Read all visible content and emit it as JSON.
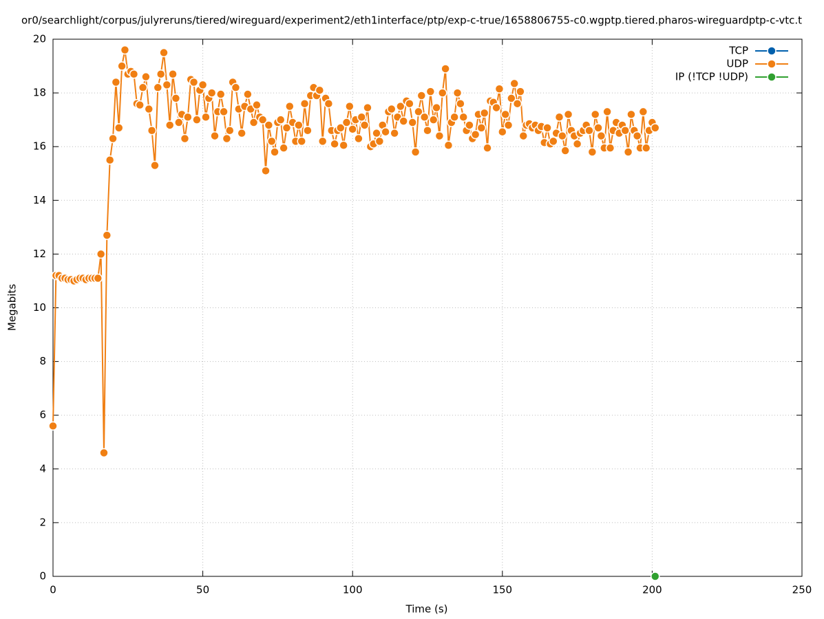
{
  "chart_data": {
    "type": "line",
    "title": "or0/searchlight/corpus/julyreruns/tiered/wireguard/experiment2/eth1interface/ptp/exp-c-true/1658806755-c0.wgptp.tiered.pharos-wireguardptp-c-vtc.t",
    "x_label": "Time (s)",
    "y_label": "Megabits",
    "x": [
      0,
      1,
      2,
      3,
      4,
      5,
      6,
      7,
      8,
      9,
      10,
      11,
      12,
      13,
      14,
      15,
      16,
      17,
      18,
      19,
      20,
      21,
      22,
      23,
      24,
      25,
      26,
      27,
      28,
      29,
      30,
      31,
      32,
      33,
      34,
      35,
      36,
      37,
      38,
      39,
      40,
      41,
      42,
      43,
      44,
      45,
      46,
      47,
      48,
      49,
      50,
      51,
      52,
      53,
      54,
      55,
      56,
      57,
      58,
      59,
      60,
      61,
      62,
      63,
      64,
      65,
      66,
      67,
      68,
      69,
      70,
      71,
      72,
      73,
      74,
      75,
      76,
      77,
      78,
      79,
      80,
      81,
      82,
      83,
      84,
      85,
      86,
      87,
      88,
      89,
      90,
      91,
      92,
      93,
      94,
      95,
      96,
      97,
      98,
      99,
      100,
      101,
      102,
      103,
      104,
      105,
      106,
      107,
      108,
      109,
      110,
      111,
      112,
      113,
      114,
      115,
      116,
      117,
      118,
      119,
      120,
      121,
      122,
      123,
      124,
      125,
      126,
      127,
      128,
      129,
      130,
      131,
      132,
      133,
      134,
      135,
      136,
      137,
      138,
      139,
      140,
      141,
      142,
      143,
      144,
      145,
      146,
      147,
      148,
      149,
      150,
      151,
      152,
      153,
      154,
      155,
      156,
      157,
      158,
      159,
      160,
      161,
      162,
      163,
      164,
      165,
      166,
      167,
      168,
      169,
      170,
      171,
      172,
      173,
      174,
      175,
      176,
      177,
      178,
      179,
      180,
      181,
      182,
      183,
      184,
      185,
      186,
      187,
      188,
      189,
      190,
      191,
      192,
      193,
      194,
      195,
      196,
      197,
      198,
      199,
      200,
      201
    ],
    "series": [
      {
        "name": "TCP",
        "color": "#0060ad",
        "x": [],
        "values": []
      },
      {
        "name": "UDP",
        "color": "#f07f13",
        "values": [
          5.6,
          11.2,
          11.2,
          11.1,
          11.1,
          11.05,
          11.05,
          11.0,
          11.05,
          11.1,
          11.1,
          11.05,
          11.1,
          11.1,
          11.1,
          11.1,
          12.0,
          4.6,
          12.7,
          15.5,
          16.3,
          18.4,
          16.7,
          19.0,
          19.6,
          18.7,
          18.8,
          18.7,
          17.6,
          17.55,
          18.2,
          18.6,
          17.4,
          16.6,
          15.3,
          18.2,
          18.7,
          19.5,
          18.3,
          16.8,
          18.7,
          17.8,
          16.9,
          17.2,
          16.3,
          17.1,
          18.5,
          18.4,
          17.0,
          18.1,
          18.3,
          17.1,
          17.8,
          18.0,
          16.4,
          17.3,
          17.95,
          17.3,
          16.3,
          16.6,
          18.4,
          18.2,
          17.4,
          16.5,
          17.5,
          17.95,
          17.4,
          16.9,
          17.55,
          17.1,
          17.0,
          15.1,
          16.8,
          16.2,
          15.8,
          16.9,
          17.0,
          15.95,
          16.7,
          17.5,
          16.9,
          16.2,
          16.8,
          16.2,
          17.6,
          16.6,
          17.9,
          18.2,
          17.9,
          18.1,
          16.2,
          17.8,
          17.6,
          16.6,
          16.1,
          16.6,
          16.7,
          16.05,
          16.9,
          17.5,
          16.65,
          17.0,
          16.3,
          17.1,
          16.8,
          17.45,
          16.0,
          16.1,
          16.5,
          16.2,
          16.8,
          16.55,
          17.3,
          17.4,
          16.5,
          17.1,
          17.5,
          16.95,
          17.7,
          17.6,
          16.9,
          15.8,
          17.3,
          17.9,
          17.1,
          16.6,
          18.05,
          17.0,
          17.45,
          16.4,
          18.0,
          18.9,
          16.05,
          16.9,
          17.1,
          18.0,
          17.6,
          17.1,
          16.6,
          16.8,
          16.3,
          16.45,
          17.2,
          16.7,
          17.25,
          15.95,
          17.7,
          17.65,
          17.45,
          18.15,
          16.55,
          17.2,
          16.8,
          17.8,
          18.35,
          17.6,
          18.05,
          16.4,
          16.8,
          16.85,
          16.7,
          16.8,
          16.6,
          16.75,
          16.15,
          16.7,
          16.1,
          16.2,
          16.5,
          17.1,
          16.4,
          15.85,
          17.2,
          16.6,
          16.4,
          16.1,
          16.5,
          16.6,
          16.8,
          16.6,
          15.8,
          17.2,
          16.7,
          16.4,
          15.95,
          17.3,
          15.95,
          16.6,
          16.9,
          16.5,
          16.8,
          16.6,
          15.8,
          17.2,
          16.6,
          16.4,
          15.95,
          17.3,
          15.95,
          16.6,
          16.9,
          16.7
        ]
      },
      {
        "name": "IP (!TCP  !UDP)",
        "color": "#30a030",
        "x": [
          201
        ],
        "values": [
          0
        ]
      }
    ],
    "xlim": [
      0,
      250
    ],
    "xticks": [
      0,
      50,
      100,
      150,
      200,
      250
    ],
    "ylim": [
      0,
      20
    ],
    "yticks": [
      0,
      2,
      4,
      6,
      8,
      10,
      12,
      14,
      16,
      18,
      20
    ],
    "grid": true,
    "legend": "top-right"
  }
}
